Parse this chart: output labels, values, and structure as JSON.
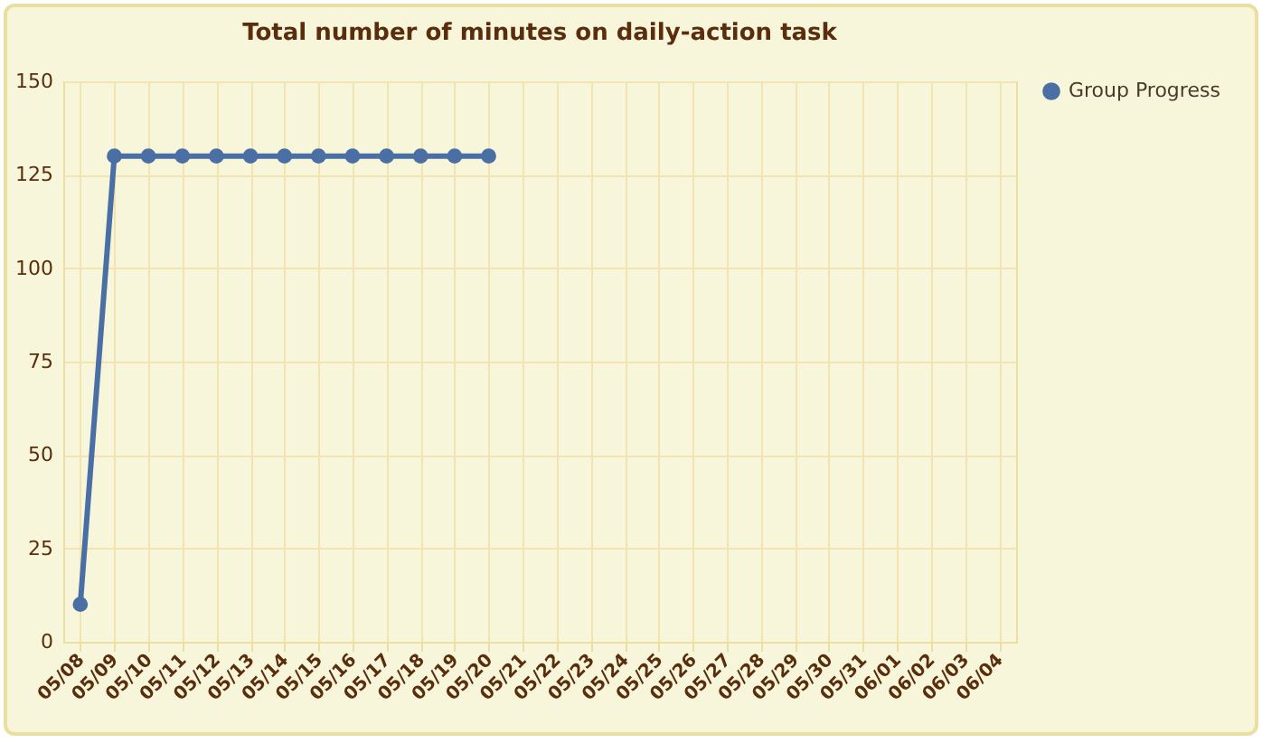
{
  "chart_data": {
    "type": "line",
    "title": "Total number of minutes on daily-action task",
    "categories": [
      "05/08",
      "05/09",
      "05/10",
      "05/11",
      "05/12",
      "05/13",
      "05/14",
      "05/15",
      "05/16",
      "05/17",
      "05/18",
      "05/19",
      "05/20",
      "05/21",
      "05/22",
      "05/23",
      "05/24",
      "05/25",
      "05/26",
      "05/27",
      "05/28",
      "05/29",
      "05/30",
      "05/31",
      "06/01",
      "06/02",
      "06/03",
      "06/04"
    ],
    "series": [
      {
        "name": "Group Progress",
        "color": "#4a6fa5",
        "values": [
          10,
          130,
          130,
          130,
          130,
          130,
          130,
          130,
          130,
          130,
          130,
          130,
          130,
          null,
          null,
          null,
          null,
          null,
          null,
          null,
          null,
          null,
          null,
          null,
          null,
          null,
          null,
          null
        ]
      }
    ],
    "ylim": [
      0,
      150
    ],
    "yticks": [
      0,
      25,
      50,
      75,
      100,
      125,
      150
    ],
    "grid": true,
    "legend": "right",
    "marker": "circle",
    "line_style": "solid"
  }
}
